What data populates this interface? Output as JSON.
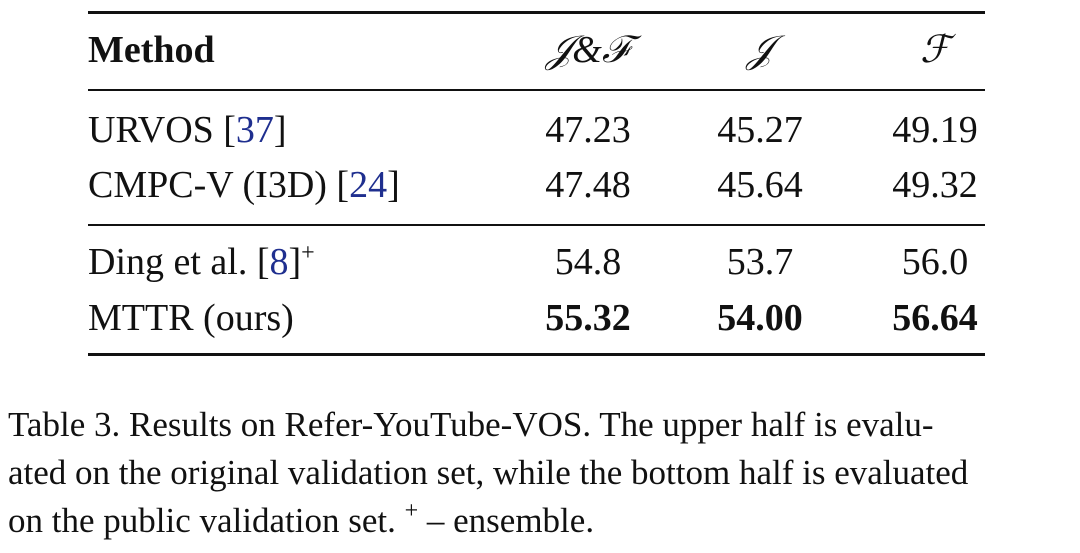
{
  "table": {
    "header": [
      "Method",
      "𝒥&ℱ",
      "𝒥",
      "ℱ"
    ],
    "groups": [
      [
        {
          "method": {
            "pre": "URVOS [",
            "cite": "37",
            "post": "]"
          },
          "cells": [
            "47.23",
            "45.27",
            "49.19"
          ],
          "bold": false
        },
        {
          "method": {
            "pre": "CMPC-V (I3D) [",
            "cite": "24",
            "post": "]"
          },
          "cells": [
            "47.48",
            "45.64",
            "49.32"
          ],
          "bold": false
        }
      ],
      [
        {
          "method": {
            "pre": "Ding et al. [",
            "cite": "8",
            "post": "]",
            "sup": "+"
          },
          "cells": [
            "54.8",
            "53.7",
            "56.0"
          ],
          "bold": false
        },
        {
          "method": {
            "pre": "MTTR (ours)"
          },
          "cells": [
            "55.32",
            "54.00",
            "56.64"
          ],
          "bold": true
        }
      ]
    ]
  },
  "caption": {
    "lines": [
      "Table 3. Results on Refer-YouTube-VOS. The upper half is evalu-",
      "ated on the original validation set, while the bottom half is evaluated"
    ],
    "last": {
      "text": "on the public validation set.",
      "sup": "+",
      "rest": "– ensemble."
    }
  }
}
